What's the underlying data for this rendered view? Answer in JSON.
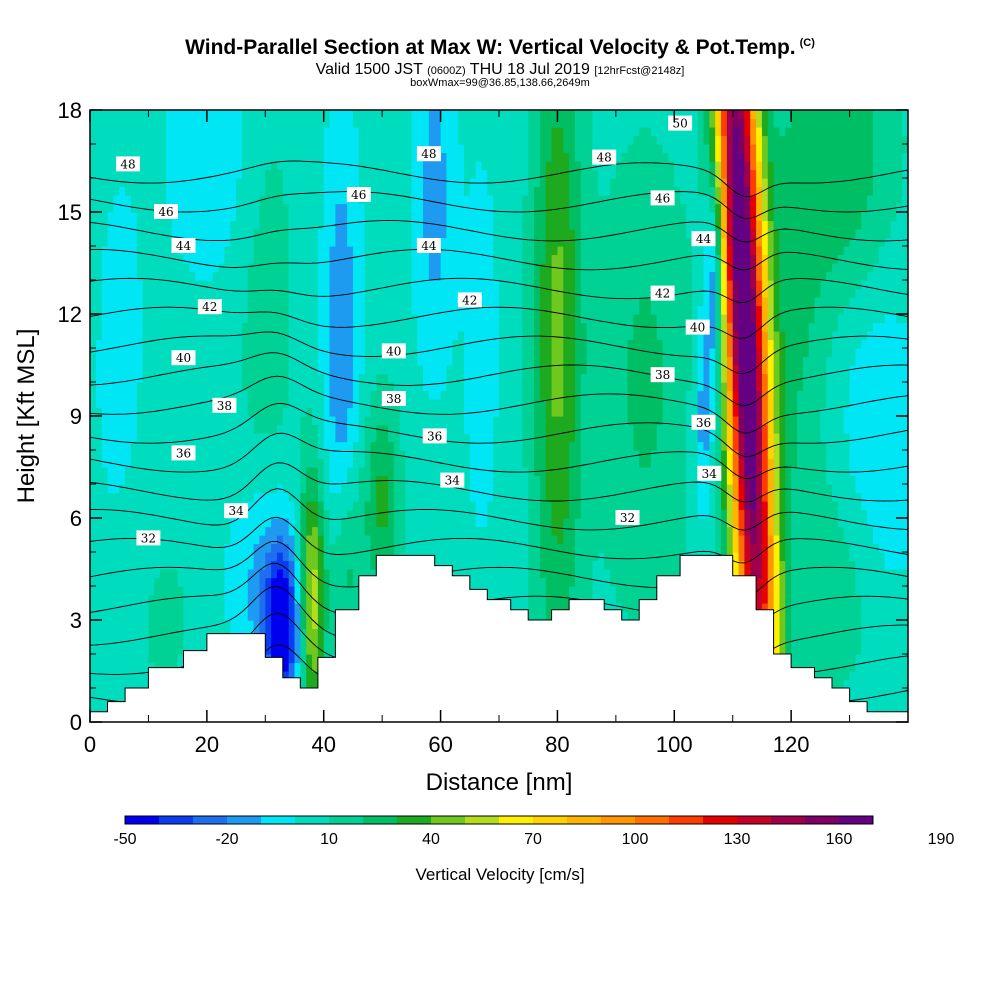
{
  "header": {
    "title": "Wind-Parallel Section at Max W: Vertical Velocity & Pot.Temp.",
    "title_mark": "(C)",
    "valid_prefix": "Valid 1500 JST",
    "valid_utc": "(0600Z)",
    "valid_date": "THU 18 Jul 2019",
    "forecast": "[12hrFcst@2148z]",
    "boxinfo": "boxWmax=99@36.85,138.66,2649m"
  },
  "chart_data": {
    "type": "heatmap",
    "xlabel": "Distance [nm]",
    "ylabel": "Height [Kft MSL]",
    "xlim": [
      0,
      140
    ],
    "ylim": [
      0,
      18
    ],
    "x_ticks": [
      "0",
      "20",
      "40",
      "60",
      "80",
      "100",
      "120"
    ],
    "y_ticks": [
      "0",
      "3",
      "6",
      "9",
      "12",
      "15",
      "18"
    ],
    "colorbar": {
      "label": "Vertical Velocity [cm/s]",
      "tick_labels": [
        "-50",
        "-20",
        "10",
        "40",
        "70",
        "100",
        "130",
        "160",
        "190"
      ],
      "min": -50,
      "step": 10,
      "colors": [
        "#0000f0",
        "#0a3cf0",
        "#1e6ef0",
        "#1e9bf0",
        "#00e6f5",
        "#00dcbe",
        "#00d296",
        "#00be64",
        "#1eaa1e",
        "#6ec81e",
        "#b4dc1e",
        "#fff000",
        "#ffd200",
        "#ffb400",
        "#ff9600",
        "#ff6e00",
        "#ff3c00",
        "#e60000",
        "#c80028",
        "#a0004b",
        "#7d0064",
        "#640082"
      ]
    },
    "terrain": [
      [
        0,
        0.3
      ],
      [
        3,
        0.3
      ],
      [
        3,
        0.6
      ],
      [
        6,
        0.6
      ],
      [
        6,
        1
      ],
      [
        10,
        1
      ],
      [
        10,
        1.6
      ],
      [
        16,
        1.6
      ],
      [
        16,
        2.1
      ],
      [
        20,
        2.1
      ],
      [
        20,
        2.6
      ],
      [
        30,
        2.6
      ],
      [
        30,
        1.9
      ],
      [
        33,
        1.9
      ],
      [
        33,
        1.3
      ],
      [
        36,
        1.3
      ],
      [
        36,
        1
      ],
      [
        39,
        1
      ],
      [
        39,
        1.9
      ],
      [
        42,
        1.9
      ],
      [
        42,
        3.3
      ],
      [
        46,
        3.3
      ],
      [
        46,
        4.3
      ],
      [
        49,
        4.3
      ],
      [
        49,
        4.9
      ],
      [
        59,
        4.9
      ],
      [
        59,
        4.6
      ],
      [
        62,
        4.6
      ],
      [
        62,
        4.3
      ],
      [
        65,
        4.3
      ],
      [
        65,
        3.9
      ],
      [
        68,
        3.9
      ],
      [
        68,
        3.6
      ],
      [
        72,
        3.6
      ],
      [
        72,
        3.3
      ],
      [
        75,
        3.3
      ],
      [
        75,
        3.0
      ],
      [
        79,
        3.0
      ],
      [
        79,
        3.3
      ],
      [
        82,
        3.3
      ],
      [
        82,
        3.6
      ],
      [
        88,
        3.6
      ],
      [
        88,
        3.3
      ],
      [
        91,
        3.3
      ],
      [
        91,
        3.0
      ],
      [
        94,
        3.0
      ],
      [
        94,
        3.6
      ],
      [
        97,
        3.6
      ],
      [
        97,
        4.3
      ],
      [
        101,
        4.3
      ],
      [
        101,
        4.9
      ],
      [
        110,
        4.9
      ],
      [
        110,
        4.3
      ],
      [
        114,
        4.3
      ],
      [
        114,
        3.3
      ],
      [
        117,
        3.3
      ],
      [
        117,
        2.0
      ],
      [
        120,
        2.0
      ],
      [
        120,
        1.6
      ],
      [
        124,
        1.6
      ],
      [
        124,
        1.3
      ],
      [
        127,
        1.3
      ],
      [
        127,
        1.0
      ],
      [
        130,
        1.0
      ],
      [
        130,
        0.6
      ],
      [
        133,
        0.6
      ],
      [
        133,
        0.3
      ],
      [
        140,
        0.3
      ]
    ],
    "w_features": [
      {
        "x": 112.0,
        "y": 12.0,
        "sx": 2.6,
        "sy": 11.0,
        "amp": 175,
        "slant": -0.25
      },
      {
        "x": 80.0,
        "y": 11.5,
        "sx": 3.0,
        "sy": 7.0,
        "amp": 38,
        "slant": 0
      },
      {
        "x": 38.0,
        "y": 3.6,
        "sx": 1.6,
        "sy": 2.6,
        "amp": 55,
        "slant": 0
      },
      {
        "x": 50.0,
        "y": 6.5,
        "sx": 2.2,
        "sy": 2.2,
        "amp": 28,
        "slant": 0
      },
      {
        "x": 44.0,
        "y": 4.5,
        "sx": 2.0,
        "sy": 2.0,
        "amp": 22,
        "slant": 0
      },
      {
        "x": 33.0,
        "y": 2.8,
        "sx": 2.2,
        "sy": 1.8,
        "amp": -55,
        "slant": 0
      },
      {
        "x": 29.0,
        "y": 4.2,
        "sx": 4.0,
        "sy": 2.2,
        "amp": -18,
        "slant": 0
      },
      {
        "x": 107.0,
        "y": 13.2,
        "sx": 1.2,
        "sy": 2.4,
        "amp": -42,
        "slant": 0
      },
      {
        "x": 105.0,
        "y": 9.0,
        "sx": 1.2,
        "sy": 2.2,
        "amp": -22,
        "slant": 0
      },
      {
        "x": 43.0,
        "y": 11.0,
        "sx": 2.2,
        "sy": 4.5,
        "amp": -22,
        "slant": 0
      },
      {
        "x": 59.0,
        "y": 15.5,
        "sx": 2.5,
        "sy": 3.5,
        "amp": -18,
        "slant": 0
      },
      {
        "x": 22.0,
        "y": 17.0,
        "sx": 6.0,
        "sy": 3.0,
        "amp": -12,
        "slant": 0
      },
      {
        "x": 135.0,
        "y": 8.0,
        "sx": 5.0,
        "sy": 3.5,
        "amp": -15,
        "slant": 0
      },
      {
        "x": 95.0,
        "y": 10.0,
        "sx": 6.0,
        "sy": 5.0,
        "amp": 18,
        "slant": 0
      },
      {
        "x": 128.0,
        "y": 16.5,
        "sx": 7.0,
        "sy": 3.0,
        "amp": 25,
        "slant": 0
      },
      {
        "x": 128.0,
        "y": 4.0,
        "sx": 6.0,
        "sy": 2.5,
        "amp": 14,
        "slant": 0
      },
      {
        "x": 12.0,
        "y": 3.0,
        "sx": 6.0,
        "sy": 2.5,
        "amp": 8,
        "slant": 0
      },
      {
        "x": 120.0,
        "y": 11.0,
        "sx": 4.0,
        "sy": 4.0,
        "amp": 16,
        "slant": 0
      },
      {
        "x": 30.0,
        "y": 13.0,
        "sx": 4.0,
        "sy": 6.0,
        "amp": 12,
        "slant": 0
      },
      {
        "x": 67.0,
        "y": 11.0,
        "sx": 2.0,
        "sy": 4.0,
        "amp": -10,
        "slant": 0
      },
      {
        "x": 5.0,
        "y": 10.0,
        "sx": 4.0,
        "sy": 6.0,
        "amp": -6,
        "slant": 0
      }
    ],
    "w_background": 4,
    "theta_levels": [
      30,
      31,
      32,
      33,
      34,
      35,
      36,
      37,
      38,
      39,
      40,
      41,
      42,
      43,
      44,
      45,
      46,
      47,
      48,
      49,
      50
    ],
    "contour_labels": [
      {
        "text": "48",
        "x": 6.5,
        "y": 16.4
      },
      {
        "text": "46",
        "x": 13,
        "y": 15.0
      },
      {
        "text": "44",
        "x": 16,
        "y": 14.0
      },
      {
        "text": "42",
        "x": 20.5,
        "y": 12.2
      },
      {
        "text": "40",
        "x": 16,
        "y": 10.7
      },
      {
        "text": "38",
        "x": 23,
        "y": 9.3
      },
      {
        "text": "36",
        "x": 16,
        "y": 7.9
      },
      {
        "text": "34",
        "x": 25,
        "y": 6.2
      },
      {
        "text": "32",
        "x": 10,
        "y": 5.4
      },
      {
        "text": "48",
        "x": 58,
        "y": 16.7
      },
      {
        "text": "46",
        "x": 46,
        "y": 15.5
      },
      {
        "text": "44",
        "x": 58,
        "y": 14.0
      },
      {
        "text": "42",
        "x": 65,
        "y": 12.4
      },
      {
        "text": "40",
        "x": 52,
        "y": 10.9
      },
      {
        "text": "38",
        "x": 52,
        "y": 9.5
      },
      {
        "text": "36",
        "x": 59,
        "y": 8.4
      },
      {
        "text": "34",
        "x": 62,
        "y": 7.1
      },
      {
        "text": "48",
        "x": 88,
        "y": 16.6
      },
      {
        "text": "50",
        "x": 101,
        "y": 17.6
      },
      {
        "text": "46",
        "x": 98,
        "y": 15.4
      },
      {
        "text": "44",
        "x": 105,
        "y": 14.2
      },
      {
        "text": "42",
        "x": 98,
        "y": 12.6
      },
      {
        "text": "40",
        "x": 104,
        "y": 11.6
      },
      {
        "text": "38",
        "x": 98,
        "y": 10.2
      },
      {
        "text": "36",
        "x": 105,
        "y": 8.8
      },
      {
        "text": "34",
        "x": 106,
        "y": 7.3
      },
      {
        "text": "32",
        "x": 92,
        "y": 6.0
      }
    ]
  }
}
